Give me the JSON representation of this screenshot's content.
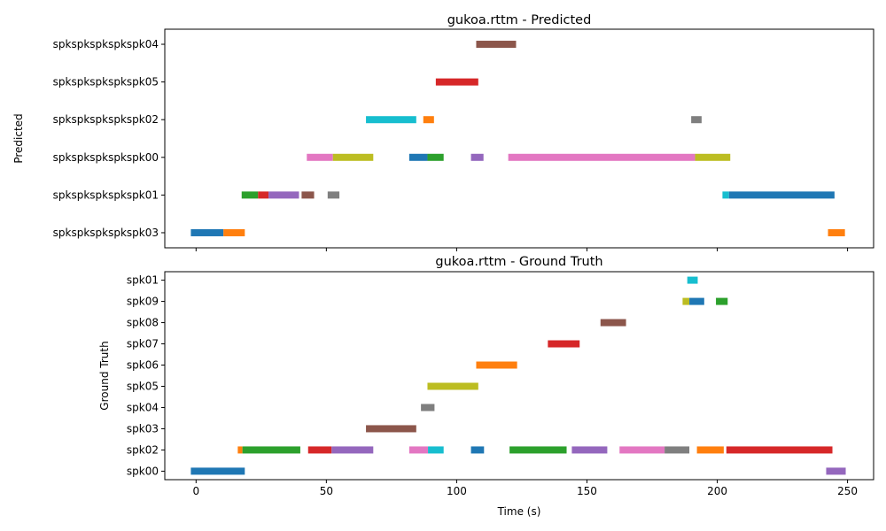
{
  "chart_data": [
    {
      "type": "timeline",
      "title": "gukoa.rttm - Predicted",
      "ylabel": "Predicted",
      "xlabel": "",
      "xlim": [
        -12,
        260
      ],
      "xticks": [
        0,
        50,
        100,
        150,
        200,
        250
      ],
      "show_xtick_labels": false,
      "rows": [
        "spkspkspkspkspk03",
        "spkspkspkspkspk01",
        "spkspkspkspkspk00",
        "spkspkspkspkspk02",
        "spkspkspkspkspk05",
        "spkspkspkspkspk04"
      ],
      "segments": [
        {
          "row": "spkspkspkspkspk03",
          "start": -2,
          "end": 10.5,
          "color": "#1f77b4"
        },
        {
          "row": "spkspkspkspkspk03",
          "start": 10.5,
          "end": 18.7,
          "color": "#ff7f0e"
        },
        {
          "row": "spkspkspkspkspk03",
          "start": 242.5,
          "end": 249,
          "color": "#ff7f0e"
        },
        {
          "row": "spkspkspkspkspk01",
          "start": 17.5,
          "end": 23.8,
          "color": "#2ca02c"
        },
        {
          "row": "spkspkspkspkspk01",
          "start": 23.8,
          "end": 27.8,
          "color": "#d62728"
        },
        {
          "row": "spkspkspkspkspk01",
          "start": 27.8,
          "end": 39.5,
          "color": "#9467bd"
        },
        {
          "row": "spkspkspkspkspk01",
          "start": 40.5,
          "end": 45.3,
          "color": "#8c564b"
        },
        {
          "row": "spkspkspkspkspk01",
          "start": 50.5,
          "end": 55,
          "color": "#7f7f7f"
        },
        {
          "row": "spkspkspkspkspk01",
          "start": 202,
          "end": 204.5,
          "color": "#17becf"
        },
        {
          "row": "spkspkspkspkspk01",
          "start": 204.5,
          "end": 245,
          "color": "#1f77b4"
        },
        {
          "row": "spkspkspkspkspk00",
          "start": 42.5,
          "end": 52.5,
          "color": "#e377c2"
        },
        {
          "row": "spkspkspkspkspk00",
          "start": 52.5,
          "end": 68,
          "color": "#bcbd22"
        },
        {
          "row": "spkspkspkspkspk00",
          "start": 81.8,
          "end": 88.8,
          "color": "#1f77b4"
        },
        {
          "row": "spkspkspkspkspk00",
          "start": 88.8,
          "end": 95,
          "color": "#2ca02c"
        },
        {
          "row": "spkspkspkspkspk00",
          "start": 105.5,
          "end": 110.3,
          "color": "#9467bd"
        },
        {
          "row": "spkspkspkspkspk00",
          "start": 119.8,
          "end": 191.5,
          "color": "#e377c2"
        },
        {
          "row": "spkspkspkspkspk00",
          "start": 191.5,
          "end": 205,
          "color": "#bcbd22"
        },
        {
          "row": "spkspkspkspkspk02",
          "start": 65.2,
          "end": 84.5,
          "color": "#17becf"
        },
        {
          "row": "spkspkspkspkspk02",
          "start": 87.2,
          "end": 91.3,
          "color": "#ff7f0e"
        },
        {
          "row": "spkspkspkspkspk02",
          "start": 190,
          "end": 194,
          "color": "#7f7f7f"
        },
        {
          "row": "spkspkspkspkspk05",
          "start": 92,
          "end": 108.3,
          "color": "#d62728"
        },
        {
          "row": "spkspkspkspkspk04",
          "start": 107.5,
          "end": 122.8,
          "color": "#8c564b"
        }
      ]
    },
    {
      "type": "timeline",
      "title": "gukoa.rttm - Ground Truth",
      "ylabel": "Ground Truth",
      "xlabel": "Time (s)",
      "xlim": [
        -12,
        260
      ],
      "xticks": [
        0,
        50,
        100,
        150,
        200,
        250
      ],
      "show_xtick_labels": true,
      "rows": [
        "spk00",
        "spk02",
        "spk03",
        "spk04",
        "spk05",
        "spk06",
        "spk07",
        "spk08",
        "spk09",
        "spk01"
      ],
      "segments": [
        {
          "row": "spk00",
          "start": -2,
          "end": 18.7,
          "color": "#1f77b4"
        },
        {
          "row": "spk00",
          "start": 241.8,
          "end": 249.3,
          "color": "#9467bd"
        },
        {
          "row": "spk02",
          "start": 16,
          "end": 17.8,
          "color": "#ff7f0e"
        },
        {
          "row": "spk02",
          "start": 17.8,
          "end": 40,
          "color": "#2ca02c"
        },
        {
          "row": "spk02",
          "start": 43,
          "end": 52,
          "color": "#d62728"
        },
        {
          "row": "spk02",
          "start": 52,
          "end": 68,
          "color": "#9467bd"
        },
        {
          "row": "spk02",
          "start": 81.8,
          "end": 89,
          "color": "#e377c2"
        },
        {
          "row": "spk02",
          "start": 89,
          "end": 95,
          "color": "#17becf"
        },
        {
          "row": "spk02",
          "start": 105.5,
          "end": 110.5,
          "color": "#1f77b4"
        },
        {
          "row": "spk02",
          "start": 120.3,
          "end": 142.2,
          "color": "#2ca02c"
        },
        {
          "row": "spk02",
          "start": 144.2,
          "end": 157.8,
          "color": "#9467bd"
        },
        {
          "row": "spk02",
          "start": 162.5,
          "end": 179.8,
          "color": "#e377c2"
        },
        {
          "row": "spk02",
          "start": 179.8,
          "end": 189.3,
          "color": "#7f7f7f"
        },
        {
          "row": "spk02",
          "start": 192.2,
          "end": 202.5,
          "color": "#ff7f0e"
        },
        {
          "row": "spk02",
          "start": 203.5,
          "end": 244.2,
          "color": "#d62728"
        },
        {
          "row": "spk03",
          "start": 65.2,
          "end": 84.5,
          "color": "#8c564b"
        },
        {
          "row": "spk04",
          "start": 86.3,
          "end": 91.5,
          "color": "#7f7f7f"
        },
        {
          "row": "spk05",
          "start": 88.8,
          "end": 108.3,
          "color": "#bcbd22"
        },
        {
          "row": "spk06",
          "start": 107.5,
          "end": 123.2,
          "color": "#ff7f0e"
        },
        {
          "row": "spk07",
          "start": 135,
          "end": 147.2,
          "color": "#d62728"
        },
        {
          "row": "spk08",
          "start": 155.2,
          "end": 165,
          "color": "#8c564b"
        },
        {
          "row": "spk09",
          "start": 186.7,
          "end": 189.3,
          "color": "#bcbd22"
        },
        {
          "row": "spk09",
          "start": 189.3,
          "end": 195,
          "color": "#1f77b4"
        },
        {
          "row": "spk09",
          "start": 199.5,
          "end": 204,
          "color": "#2ca02c"
        },
        {
          "row": "spk01",
          "start": 188.5,
          "end": 192.5,
          "color": "#17becf"
        }
      ]
    }
  ]
}
